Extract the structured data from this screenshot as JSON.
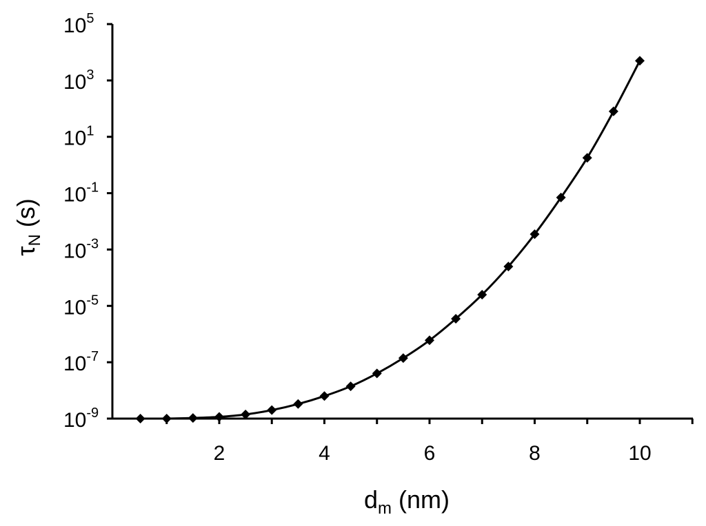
{
  "chart_data": {
    "type": "line",
    "xlabel": {
      "main": "d",
      "sub": "m",
      "unit": " (nm)"
    },
    "ylabel": {
      "main": "τ",
      "sub": "N",
      "unit": " (s)"
    },
    "xlim": [
      0,
      11
    ],
    "ylim": [
      1e-09,
      100000.0
    ],
    "yscale": "log",
    "grid": false,
    "legend": "none",
    "x_ticks": [
      {
        "value": 2,
        "label": "2"
      },
      {
        "value": 4,
        "label": "4"
      },
      {
        "value": 6,
        "label": "6"
      },
      {
        "value": 8,
        "label": "8"
      },
      {
        "value": 10,
        "label": "10"
      }
    ],
    "y_ticks": [
      {
        "value": 100000.0,
        "base": "10",
        "exp": "5"
      },
      {
        "value": 1000.0,
        "base": "10",
        "exp": "3"
      },
      {
        "value": 10.0,
        "base": "10",
        "exp": "1"
      },
      {
        "value": 0.1,
        "base": "10",
        "exp": "-1"
      },
      {
        "value": 0.001,
        "base": "10",
        "exp": "-3"
      },
      {
        "value": 1e-05,
        "base": "10",
        "exp": "-5"
      },
      {
        "value": 1e-07,
        "base": "10",
        "exp": "-7"
      },
      {
        "value": 1e-09,
        "base": "10",
        "exp": "-9"
      }
    ],
    "series": [
      {
        "marker": "diamond",
        "color": "#000000",
        "x": [
          0.5,
          1,
          1.5,
          2,
          2.5,
          3,
          3.5,
          4,
          4.5,
          5,
          5.5,
          6,
          6.5,
          7,
          7.5,
          8,
          8.5,
          9,
          9.5,
          10
        ],
        "y": [
          1e-09,
          1e-09,
          1.05e-09,
          1.15e-09,
          1.4e-09,
          2e-09,
          3.3e-09,
          6.3e-09,
          1.4e-08,
          4e-08,
          1.4e-07,
          6e-07,
          3.5e-06,
          2.5e-05,
          0.00025,
          0.0035,
          0.07,
          1.8,
          80,
          5000
        ]
      }
    ]
  }
}
